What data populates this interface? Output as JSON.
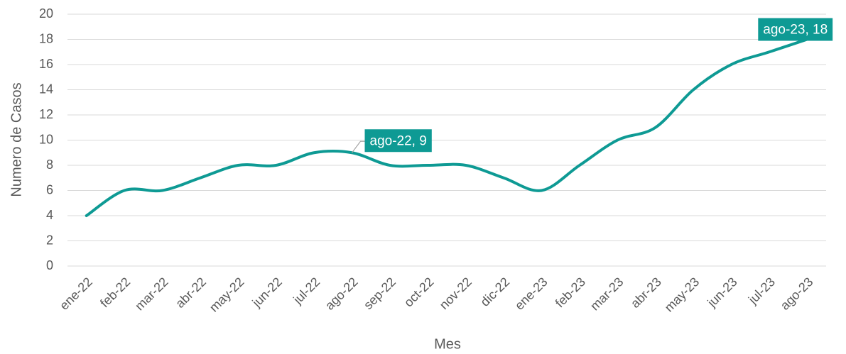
{
  "chart_data": {
    "type": "line",
    "x_label": "Mes",
    "y_label": "Numero de Casos",
    "categories": [
      "ene-22",
      "feb-22",
      "mar-22",
      "abr-22",
      "may-22",
      "jun-22",
      "jul-22",
      "ago-22",
      "sep-22",
      "oct-22",
      "nov-22",
      "dic-22",
      "ene-23",
      "feb-23",
      "mar-23",
      "abr-23",
      "may-23",
      "jun-23",
      "jul-23",
      "ago-23"
    ],
    "series": [
      {
        "name": "Casos",
        "color": "#0e9a94",
        "values": [
          4,
          6,
          6,
          7,
          8,
          8,
          9,
          9,
          8,
          8,
          8,
          7,
          6,
          8,
          10,
          11,
          14,
          16,
          17,
          18
        ],
        "value_labels": [
          null,
          null,
          null,
          null,
          null,
          null,
          null,
          "ago-22, 9",
          null,
          null,
          null,
          null,
          null,
          null,
          null,
          null,
          null,
          null,
          null,
          "ago-23, 18"
        ]
      }
    ],
    "ylim": [
      0,
      20
    ],
    "yticks": [
      0,
      2,
      4,
      6,
      8,
      10,
      12,
      14,
      16,
      18,
      20
    ],
    "grid": true,
    "legend": false
  }
}
